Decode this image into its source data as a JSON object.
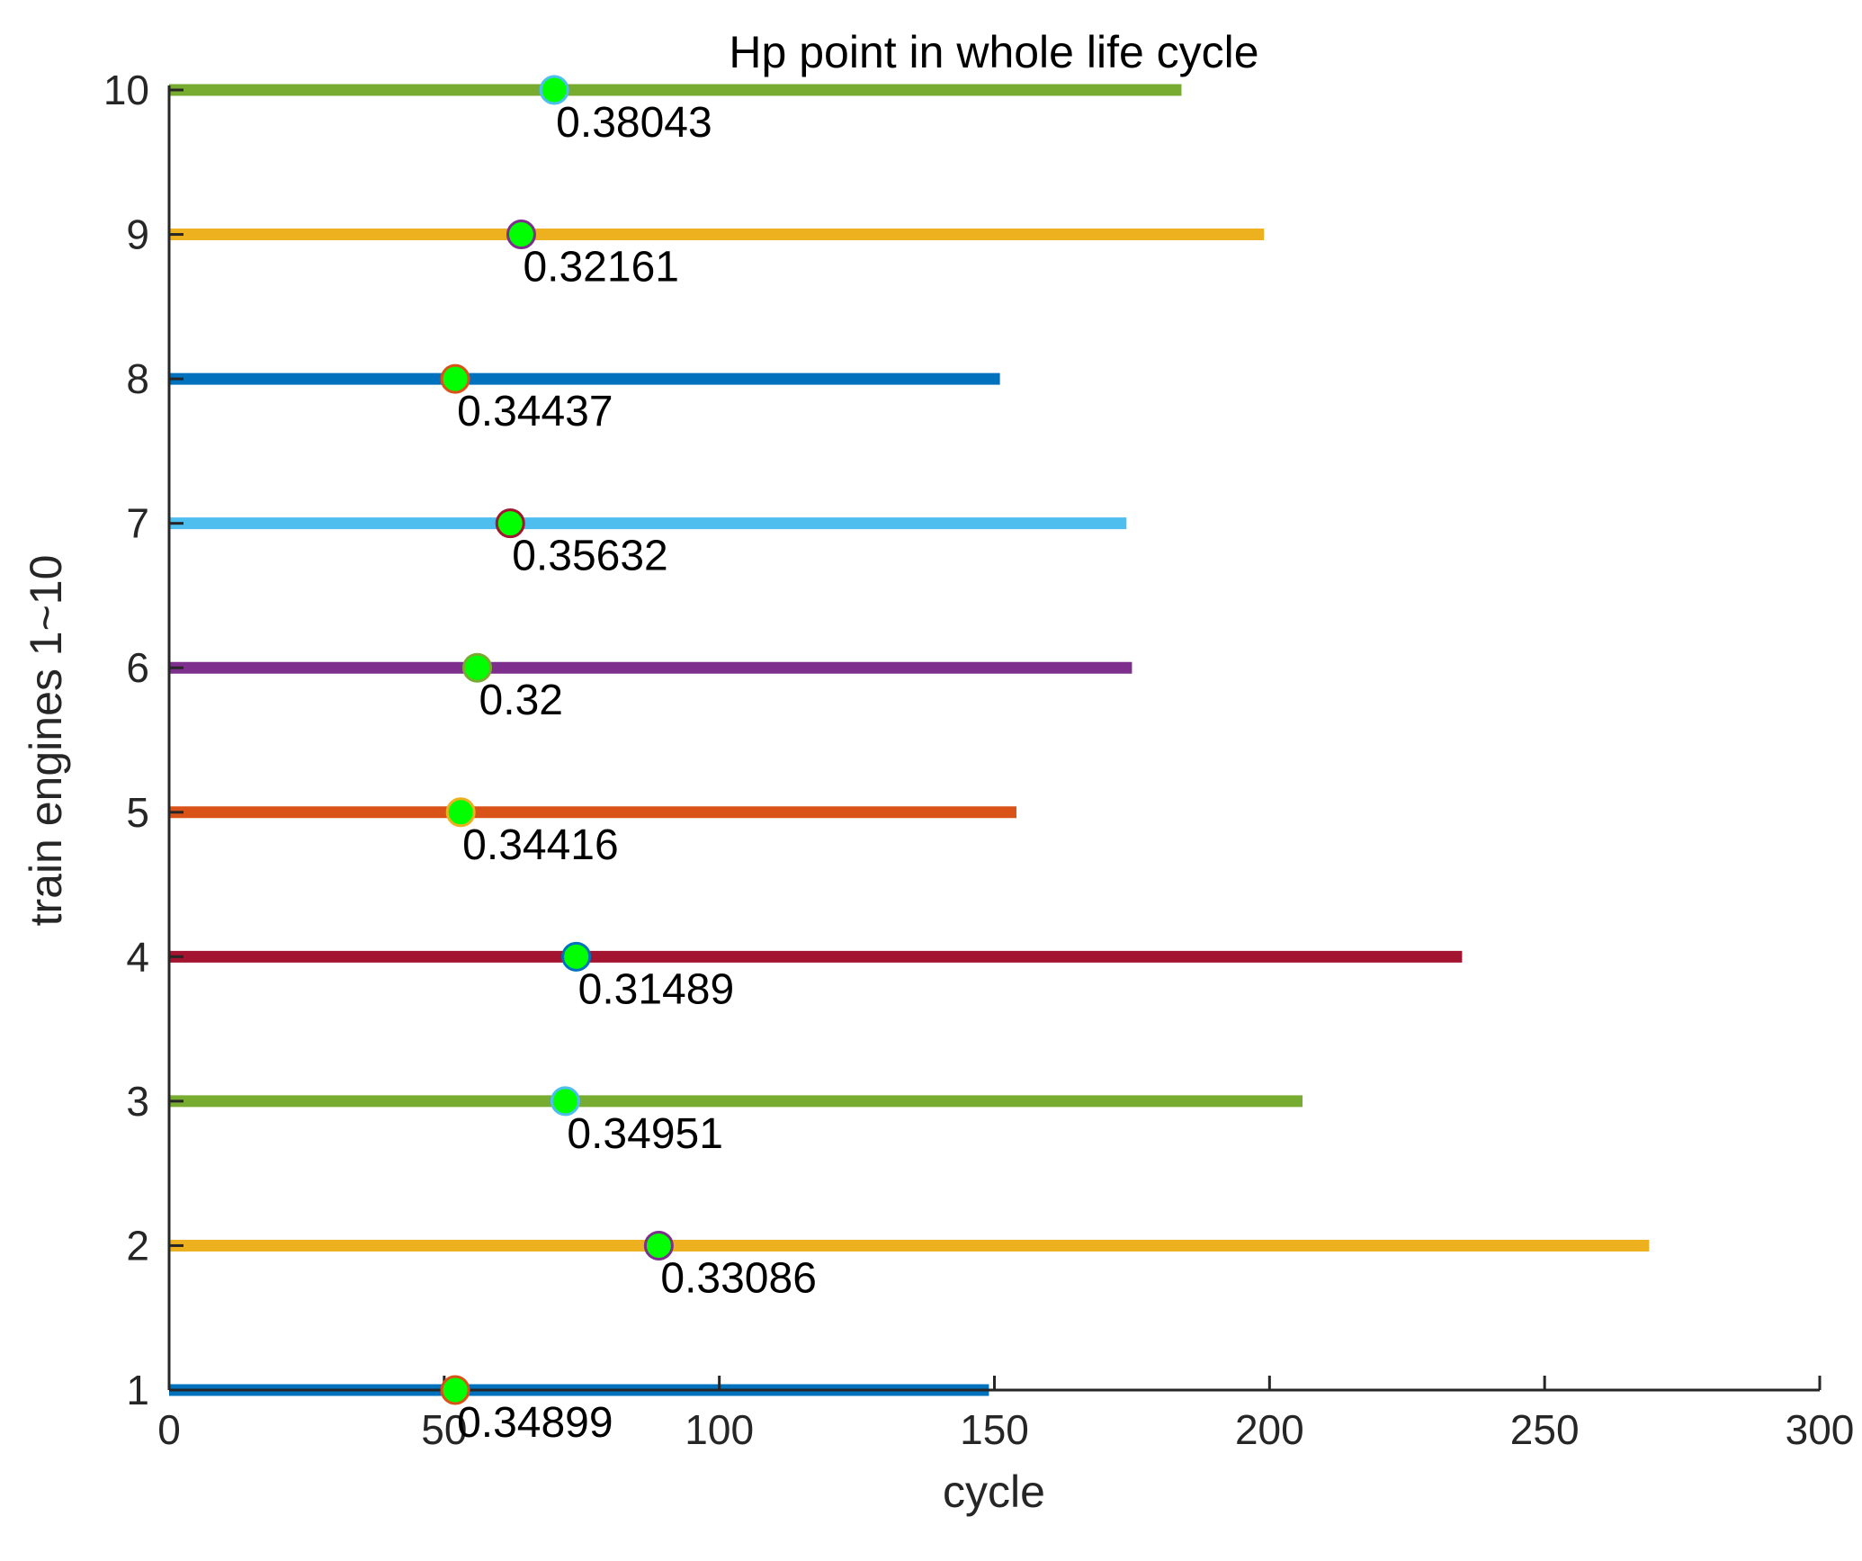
{
  "chart_data": {
    "type": "bar",
    "orientation": "horizontal",
    "title": "Hp point in whole life cycle",
    "xlabel": "cycle",
    "ylabel": "train engines 1~10",
    "xlim": [
      0,
      300
    ],
    "ylim": [
      1,
      10
    ],
    "xticks": [
      0,
      50,
      100,
      150,
      200,
      250,
      300
    ],
    "yticks": [
      1,
      2,
      3,
      4,
      5,
      6,
      7,
      8,
      9,
      10
    ],
    "grid": false,
    "marker_fill": "#00ff00",
    "engines": [
      {
        "engine": 1,
        "life": 149,
        "hp_cycle": 52,
        "hp_value": "0.34899",
        "bar_color": "#0072bd",
        "marker_edge": "#d95319"
      },
      {
        "engine": 2,
        "life": 269,
        "hp_cycle": 89,
        "hp_value": "0.33086",
        "bar_color": "#edb120",
        "marker_edge": "#7e2f8e"
      },
      {
        "engine": 3,
        "life": 206,
        "hp_cycle": 72,
        "hp_value": "0.34951",
        "bar_color": "#77ac30",
        "marker_edge": "#4dbeee"
      },
      {
        "engine": 4,
        "life": 235,
        "hp_cycle": 74,
        "hp_value": "0.31489",
        "bar_color": "#a2142f",
        "marker_edge": "#0072bd"
      },
      {
        "engine": 5,
        "life": 154,
        "hp_cycle": 53,
        "hp_value": "0.34416",
        "bar_color": "#d95319",
        "marker_edge": "#edb120"
      },
      {
        "engine": 6,
        "life": 175,
        "hp_cycle": 56,
        "hp_value": "0.32",
        "bar_color": "#7e2f8e",
        "marker_edge": "#77ac30"
      },
      {
        "engine": 7,
        "life": 174,
        "hp_cycle": 62,
        "hp_value": "0.35632",
        "bar_color": "#4dbeee",
        "marker_edge": "#a2142f"
      },
      {
        "engine": 8,
        "life": 151,
        "hp_cycle": 52,
        "hp_value": "0.34437",
        "bar_color": "#0072bd",
        "marker_edge": "#d95319"
      },
      {
        "engine": 9,
        "life": 199,
        "hp_cycle": 64,
        "hp_value": "0.32161",
        "bar_color": "#edb120",
        "marker_edge": "#7e2f8e"
      },
      {
        "engine": 10,
        "life": 184,
        "hp_cycle": 70,
        "hp_value": "0.38043",
        "bar_color": "#77ac30",
        "marker_edge": "#4dbeee"
      }
    ]
  }
}
